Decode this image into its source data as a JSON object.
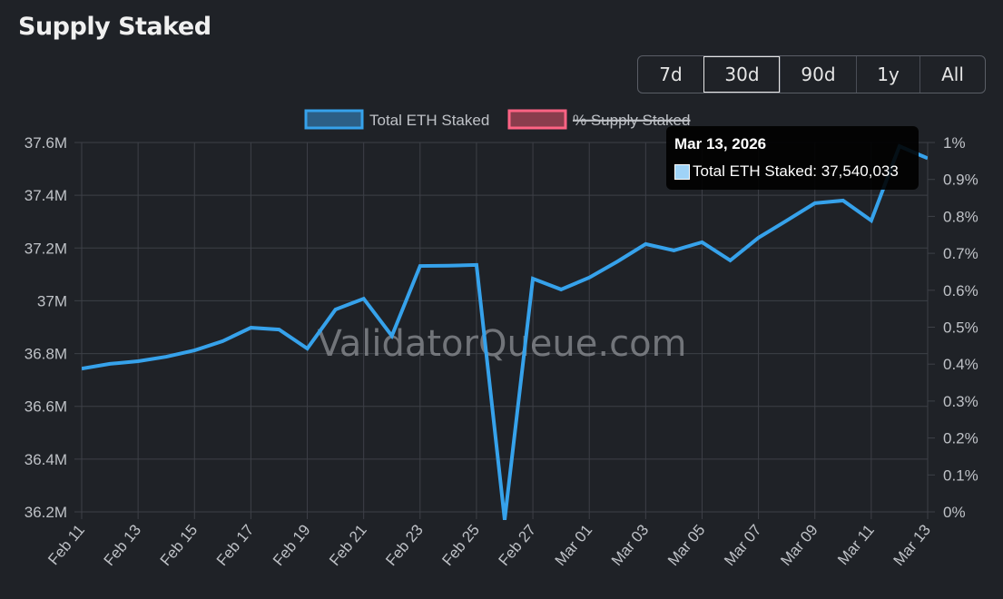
{
  "page": {
    "title": "Supply Staked"
  },
  "range_buttons": [
    {
      "label": "7d",
      "active": false
    },
    {
      "label": "30d",
      "active": true
    },
    {
      "label": "90d",
      "active": false
    },
    {
      "label": "1y",
      "active": false
    },
    {
      "label": "All",
      "active": false
    }
  ],
  "watermark": "ValidatorQueue.com",
  "tooltip": {
    "date": "Mar 13, 2026",
    "label": "Total ETH Staked: 37,540,033"
  },
  "colors": {
    "line": "#36a2eb",
    "line_fill": "#2c5f86",
    "pct": "#ff6384",
    "pct_fill": "#8a3d4d",
    "grid": "#3d4047"
  },
  "chart_data": {
    "type": "line",
    "title": "Supply Staked",
    "legend": [
      {
        "name": "Total ETH Staked",
        "hidden": false
      },
      {
        "name": "% Supply Staked",
        "hidden": true
      }
    ],
    "legend_position": "top",
    "x": [
      "Feb 11",
      "Feb 12",
      "Feb 13",
      "Feb 14",
      "Feb 15",
      "Feb 16",
      "Feb 17",
      "Feb 18",
      "Feb 19",
      "Feb 20",
      "Feb 21",
      "Feb 22",
      "Feb 23",
      "Feb 24",
      "Feb 25",
      "Feb 26",
      "Feb 27",
      "Feb 28",
      "Mar 01",
      "Mar 02",
      "Mar 03",
      "Mar 04",
      "Mar 05",
      "Mar 06",
      "Mar 07",
      "Mar 08",
      "Mar 09",
      "Mar 10",
      "Mar 11",
      "Mar 12",
      "Mar 13"
    ],
    "x_tick_labels": [
      "Feb 11",
      "Feb 13",
      "Feb 15",
      "Feb 17",
      "Feb 19",
      "Feb 21",
      "Feb 23",
      "Feb 25",
      "Feb 27",
      "Mar 01",
      "Mar 03",
      "Mar 05",
      "Mar 07",
      "Mar 09",
      "Mar 11",
      "Mar 13"
    ],
    "series": [
      {
        "name": "Total ETH Staked",
        "axis": "left",
        "values": [
          36743000,
          36761000,
          36771000,
          36788000,
          36812000,
          36847000,
          36898000,
          36891000,
          36819000,
          36967000,
          37008000,
          36867000,
          37132000,
          37133000,
          37136000,
          36170000,
          37084000,
          37043000,
          37088000,
          37149000,
          37215000,
          37191000,
          37222000,
          37153000,
          37239000,
          37304000,
          37370000,
          37380000,
          37304000,
          37586000,
          37540033
        ]
      }
    ],
    "y_left": {
      "range": [
        36200000,
        37600000
      ],
      "ticks": [
        "36.2M",
        "36.4M",
        "36.6M",
        "36.8M",
        "37M",
        "37.2M",
        "37.4M",
        "37.6M"
      ]
    },
    "y_right": {
      "range": [
        0,
        1
      ],
      "ticks": [
        "0%",
        "0.1%",
        "0.2%",
        "0.3%",
        "0.4%",
        "0.5%",
        "0.6%",
        "0.7%",
        "0.8%",
        "0.9%",
        "1%"
      ]
    },
    "grid": true
  }
}
